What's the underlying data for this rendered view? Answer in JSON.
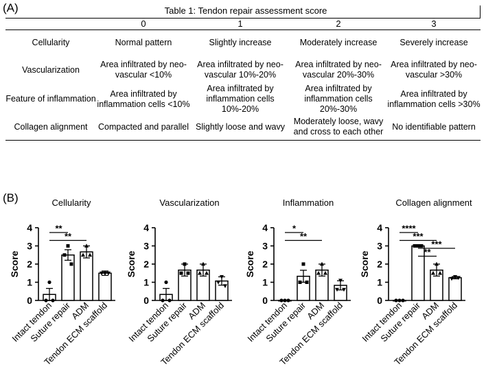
{
  "panel_a_label": "(A)",
  "panel_b_label": "(B)",
  "table": {
    "title": "Table 1: Tendon repair assessment score",
    "headers": [
      "",
      "0",
      "1",
      "2",
      "3"
    ],
    "rows": [
      [
        "Cellularity",
        "Normal pattern",
        "Slightly increase",
        "Moderately increase",
        "Severely increase"
      ],
      [
        "Vascularization",
        "Area infiltrated by neo-vascular <10%",
        "Area infiltrated by neo-vascular 10%-20%",
        "Area infiltrated by neo-vascular 20%-30%",
        "Area infiltrated by neo-vascular >30%"
      ],
      [
        "Feature of inflammation",
        "Area infiltrated by inflammation cells <10%",
        "Area infiltrated by inflammation cells 10%-20%",
        "Area infiltrated by inflammation cells 20%-30%",
        "Area infiltrated by inflammation cells >30%"
      ],
      [
        "Collagen alignment",
        "Compacted and parallel",
        "Slightly loose and wavy",
        "Moderately loose, wavy and cross to each other",
        "No identifiable pattern"
      ]
    ]
  },
  "chart_data": [
    {
      "type": "bar",
      "title": "Cellularity",
      "ylabel": "Score",
      "ylim": [
        0,
        4
      ],
      "yticks": [
        "0",
        "1",
        "2",
        "3",
        "4"
      ],
      "categories": [
        "Intact tendon",
        "Suture repair",
        "ADM",
        "Tendon ECM scaffold"
      ],
      "values": [
        0.33,
        2.5,
        2.67,
        1.5
      ],
      "errors": [
        0.33,
        0.29,
        0.33,
        0.12
      ],
      "markers": [
        "circle",
        "square",
        "triangle-up",
        "triangle-down"
      ],
      "points": [
        [
          1,
          0,
          0
        ],
        [
          3,
          2.5,
          2
        ],
        [
          3,
          2.5,
          2.5
        ],
        [
          1.5,
          1.5,
          1.5
        ]
      ],
      "significance": [
        {
          "from": 0,
          "to": 1,
          "label": "**"
        },
        {
          "from": 0,
          "to": 2,
          "label": "**"
        }
      ]
    },
    {
      "type": "bar",
      "title": "Vascularization",
      "ylabel": "Score",
      "ylim": [
        0,
        4
      ],
      "yticks": [
        "0",
        "1",
        "2",
        "3",
        "4"
      ],
      "categories": [
        "Intact tendon",
        "Suture repair",
        "ADM",
        "Tendon ECM scaffold"
      ],
      "values": [
        0.33,
        1.67,
        1.67,
        1.07
      ],
      "errors": [
        0.33,
        0.33,
        0.33,
        0.23
      ],
      "markers": [
        "circle",
        "square",
        "triangle-up",
        "triangle-down"
      ],
      "points": [
        [
          1,
          0,
          0
        ],
        [
          2,
          1.5,
          1.5
        ],
        [
          2,
          1.5,
          1.5
        ],
        [
          1.3,
          1.0,
          0.8
        ]
      ],
      "significance": []
    },
    {
      "type": "bar",
      "title": "Inflammation",
      "ylabel": "Score",
      "ylim": [
        0,
        4
      ],
      "yticks": [
        "0",
        "1",
        "2",
        "3",
        "4"
      ],
      "categories": [
        "Intact tendon",
        "Suture repair",
        "ADM",
        "Tendon ECM scaffold"
      ],
      "values": [
        0.0,
        1.33,
        1.67,
        0.83
      ],
      "errors": [
        0.02,
        0.33,
        0.33,
        0.25
      ],
      "markers": [
        "circle",
        "square",
        "triangle-up",
        "triangle-down"
      ],
      "points": [
        [
          0,
          0,
          0
        ],
        [
          2,
          1,
          1
        ],
        [
          2,
          1.5,
          1.5
        ],
        [
          1.1,
          0.6,
          0.6
        ]
      ],
      "significance": [
        {
          "from": 0,
          "to": 1,
          "label": "*"
        },
        {
          "from": 0,
          "to": 2,
          "label": "**"
        }
      ]
    },
    {
      "type": "bar",
      "title": "Collagen alignment",
      "ylabel": "Score",
      "ylim": [
        0,
        4
      ],
      "yticks": [
        "0",
        "1",
        "2",
        "3",
        "4"
      ],
      "categories": [
        "Intact tendon",
        "Suture repair",
        "ADM",
        "Tendon ECM scaffold"
      ],
      "values": [
        0.0,
        3.0,
        1.67,
        1.25
      ],
      "errors": [
        0.02,
        0.04,
        0.33,
        0.06
      ],
      "markers": [
        "circle",
        "square",
        "triangle-up",
        "triangle-down"
      ],
      "points": [
        [
          0,
          0,
          0
        ],
        [
          3,
          3,
          3
        ],
        [
          2,
          1.5,
          1.5
        ],
        [
          1.3,
          1.2,
          1.25
        ]
      ],
      "significance": [
        {
          "from": 0,
          "to": 1,
          "label": "****"
        },
        {
          "from": 0,
          "to": 2,
          "label": "***"
        },
        {
          "from": 1,
          "to": 3,
          "label": "***"
        },
        {
          "from": 1,
          "to": 2,
          "label": "**"
        }
      ]
    }
  ]
}
